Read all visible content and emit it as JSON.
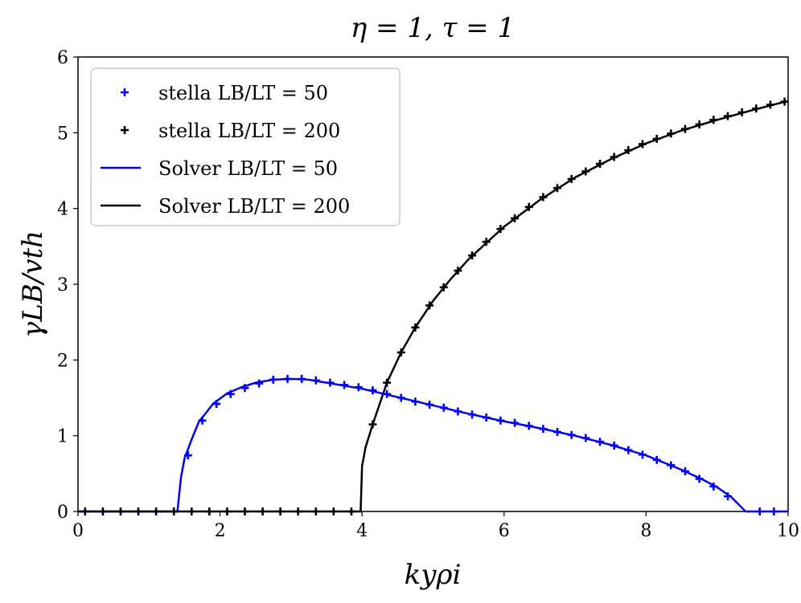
{
  "chart_data": {
    "type": "line",
    "title": "η = 1, τ = 1",
    "x_label": "kyρi",
    "y_label": "γLB/vth",
    "xlim": [
      0,
      10
    ],
    "ylim": [
      0,
      6
    ],
    "xticks": [
      0,
      2,
      4,
      6,
      8,
      10
    ],
    "yticks": [
      0,
      1,
      2,
      3,
      4,
      5,
      6
    ],
    "legend": "upper left",
    "series": [
      {
        "name": "stella LB/LT = 50",
        "color": "#0000ff",
        "style": "marker",
        "x": [
          1.55,
          1.75,
          1.95,
          2.15,
          2.35,
          2.55,
          2.75,
          2.95,
          3.15,
          3.35,
          3.55,
          3.75,
          3.95,
          4.15,
          4.35,
          4.55,
          4.75,
          4.95,
          5.15,
          5.35,
          5.55,
          5.75,
          5.95,
          6.15,
          6.35,
          6.55,
          6.75,
          6.95,
          7.15,
          7.35,
          7.55,
          7.75,
          7.95,
          8.15,
          8.35,
          8.55,
          8.75,
          8.95,
          9.15,
          9.6,
          9.8
        ],
        "values": [
          0.74,
          1.2,
          1.42,
          1.55,
          1.63,
          1.69,
          1.74,
          1.75,
          1.75,
          1.73,
          1.7,
          1.67,
          1.64,
          1.6,
          1.55,
          1.5,
          1.45,
          1.41,
          1.37,
          1.32,
          1.28,
          1.24,
          1.2,
          1.17,
          1.13,
          1.09,
          1.05,
          1.01,
          0.97,
          0.92,
          0.87,
          0.81,
          0.75,
          0.68,
          0.61,
          0.53,
          0.43,
          0.33,
          0.2,
          0,
          0
        ]
      },
      {
        "name": "stella LB/LT = 200",
        "color": "#000000",
        "style": "marker",
        "x": [
          0.1,
          0.35,
          0.6,
          0.85,
          1.1,
          1.35,
          1.6,
          1.85,
          2.1,
          2.35,
          2.6,
          2.85,
          3.1,
          3.35,
          3.6,
          3.85,
          4.15,
          4.35,
          4.55,
          4.75,
          4.95,
          5.15,
          5.35,
          5.55,
          5.75,
          5.95,
          6.15,
          6.35,
          6.55,
          6.75,
          6.95,
          7.15,
          7.35,
          7.55,
          7.75,
          7.95,
          8.15,
          8.35,
          8.55,
          8.75,
          8.95,
          9.15,
          9.35,
          9.55,
          9.75,
          9.95
        ],
        "values": [
          0,
          0,
          0,
          0,
          0,
          0,
          0,
          0,
          0,
          0,
          0,
          0,
          0,
          0,
          0,
          0,
          1.15,
          1.7,
          2.1,
          2.43,
          2.72,
          2.96,
          3.18,
          3.38,
          3.56,
          3.73,
          3.87,
          4.02,
          4.15,
          4.27,
          4.39,
          4.49,
          4.59,
          4.68,
          4.77,
          4.85,
          4.92,
          4.99,
          5.05,
          5.11,
          5.17,
          5.22,
          5.27,
          5.32,
          5.37,
          5.41
        ]
      },
      {
        "name": "Solver LB/LT = 50",
        "color": "#0000ff",
        "style": "line",
        "x": [
          0,
          1.4,
          1.45,
          1.5,
          1.6,
          1.7,
          1.9,
          2.1,
          2.3,
          2.5,
          2.75,
          3.0,
          3.25,
          3.5,
          4.0,
          4.5,
          5.0,
          5.5,
          6.0,
          6.5,
          7.0,
          7.5,
          8.0,
          8.5,
          8.8,
          9.0,
          9.2,
          9.4,
          10
        ],
        "values": [
          0,
          0,
          0.45,
          0.7,
          0.95,
          1.18,
          1.42,
          1.56,
          1.64,
          1.7,
          1.74,
          1.75,
          1.74,
          1.7,
          1.62,
          1.51,
          1.4,
          1.29,
          1.19,
          1.1,
          1.0,
          0.88,
          0.74,
          0.55,
          0.42,
          0.32,
          0.19,
          0,
          0
        ]
      },
      {
        "name": "Solver LB/LT = 200",
        "color": "#000000",
        "style": "line",
        "x": [
          0,
          3.98,
          4.0,
          4.05,
          4.15,
          4.35,
          4.55,
          4.75,
          5.0,
          5.25,
          5.5,
          6.0,
          6.5,
          7.0,
          7.5,
          8.0,
          8.5,
          9.0,
          9.5,
          10
        ],
        "values": [
          0,
          0,
          0.6,
          0.85,
          1.15,
          1.7,
          2.1,
          2.43,
          2.78,
          3.07,
          3.33,
          3.76,
          4.11,
          4.41,
          4.65,
          4.86,
          5.03,
          5.17,
          5.3,
          5.42
        ]
      }
    ]
  }
}
